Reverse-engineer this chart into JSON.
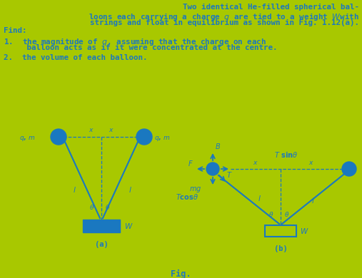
{
  "bg_color": "#a8c800",
  "text_color": "#1a78c0",
  "blue_fill": "#1a78c0",
  "fs_title": 7.8,
  "fs_body": 7.8,
  "fs_small": 7.0,
  "fs_label": 7.5,
  "fs_fig": 8.5,
  "line1": "Two identical He-filled spherical bal-",
  "line2": "loons each carrying a charge $\\it{q}$ are tied to a weight $\\it{W}$with",
  "line3": "strings and float in equilibrium as shown in Fig. 1.12(a).",
  "line4": "Find:",
  "item1a": "1.  the magnitude of $\\it{q}$, assuming that the charge on each",
  "item1b": "     balloon acts as if it were concentrated at the centre.",
  "item2": "2.  the volume of each balloon.",
  "fig_label": "Fig."
}
